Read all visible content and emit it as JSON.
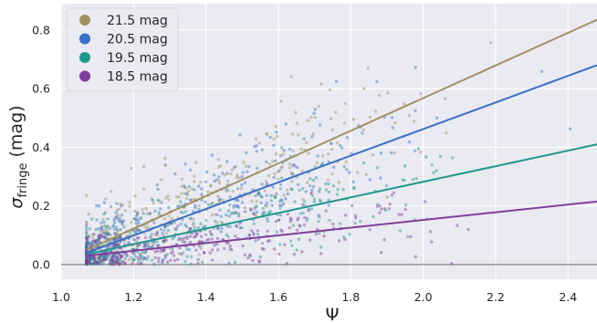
{
  "chart_data": {
    "type": "scatter",
    "xlabel": "Ψ",
    "ylabel_main": "σ",
    "ylabel_sub": "fringe",
    "ylabel_unit": "(mag)",
    "xlim": [
      1.0,
      2.48
    ],
    "ylim": [
      -0.05,
      0.89
    ],
    "x_ticks": [
      1.0,
      1.2,
      1.4,
      1.6,
      1.8,
      2.0,
      2.2,
      2.4
    ],
    "x_tick_labels": [
      "1.0",
      "1.2",
      "1.4",
      "1.6",
      "1.8",
      "2.0",
      "2.2",
      "2.4"
    ],
    "y_ticks": [
      0.0,
      0.2,
      0.4,
      0.6,
      0.8
    ],
    "y_tick_labels": [
      "0.0",
      "0.2",
      "0.4",
      "0.6",
      "0.8"
    ],
    "grid": true,
    "legend_position": "top-left",
    "zero_line": true,
    "scatter_region": {
      "x_min": 1.07,
      "x_max": 2.48
    },
    "series": [
      {
        "name": "21.5 mag",
        "color": "#a09164",
        "fit_line": {
          "x": [
            1.07,
            2.48
          ],
          "y": [
            0.05,
            0.835
          ]
        },
        "scatter_spread": 0.1,
        "seed": 11,
        "count": 340
      },
      {
        "name": "20.5 mag",
        "color": "#3b6fc4",
        "fit_line": {
          "x": [
            1.07,
            2.48
          ],
          "y": [
            0.04,
            0.68
          ]
        },
        "scatter_spread": 0.09,
        "seed": 23,
        "count": 360
      },
      {
        "name": "19.5 mag",
        "color": "#21978b",
        "fit_line": {
          "x": [
            1.07,
            2.48
          ],
          "y": [
            0.035,
            0.41
          ]
        },
        "scatter_spread": 0.075,
        "seed": 37,
        "count": 330
      },
      {
        "name": "18.5 mag",
        "color": "#7f3f98",
        "fit_line": {
          "x": [
            1.07,
            2.48
          ],
          "y": [
            0.03,
            0.215
          ]
        },
        "scatter_spread": 0.055,
        "seed": 51,
        "count": 330
      }
    ]
  }
}
